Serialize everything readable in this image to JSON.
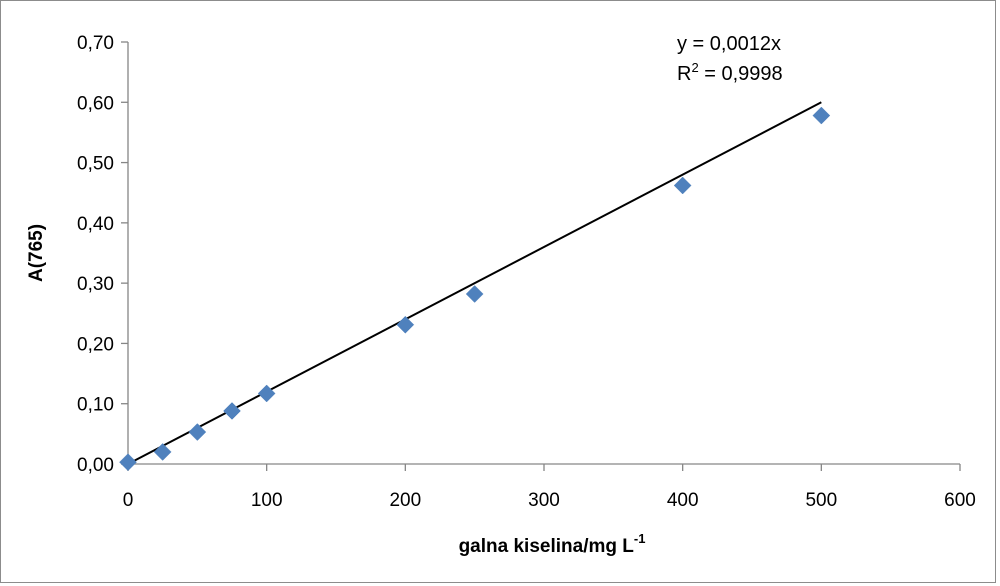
{
  "chart_data": {
    "type": "scatter",
    "xlabel": "galna kiselina/mg L",
    "xlabel_sup": "-1",
    "ylabel": "A(765)",
    "xlim": [
      0,
      600
    ],
    "ylim": [
      0,
      0.7
    ],
    "x_ticks": [
      0,
      100,
      200,
      300,
      400,
      500,
      600
    ],
    "x_tick_labels": [
      "0",
      "100",
      "200",
      "300",
      "400",
      "500",
      "600"
    ],
    "y_ticks": [
      0,
      0.1,
      0.2,
      0.3,
      0.4,
      0.5,
      0.6,
      0.7
    ],
    "y_tick_labels": [
      "0,00",
      "0,10",
      "0,20",
      "0,30",
      "0,40",
      "0,50",
      "0,60",
      "0,70"
    ],
    "grid": false,
    "marker_color": "#4f81bd",
    "trendline_color": "#000000",
    "series": [
      {
        "marker": "diamond",
        "x": [
          0,
          25,
          50,
          75,
          100,
          200,
          250,
          400,
          500
        ],
        "y": [
          0.003,
          0.02,
          0.053,
          0.088,
          0.117,
          0.231,
          0.282,
          0.462,
          0.578
        ]
      }
    ],
    "trendline": {
      "slope": 0.0012,
      "intercept": 0,
      "x_range": [
        0,
        500
      ]
    },
    "annotations": {
      "equation": "y = 0,0012x",
      "r2_prefix": "R",
      "r2_sup": "2",
      "r2_value": " = 0,9998"
    }
  }
}
